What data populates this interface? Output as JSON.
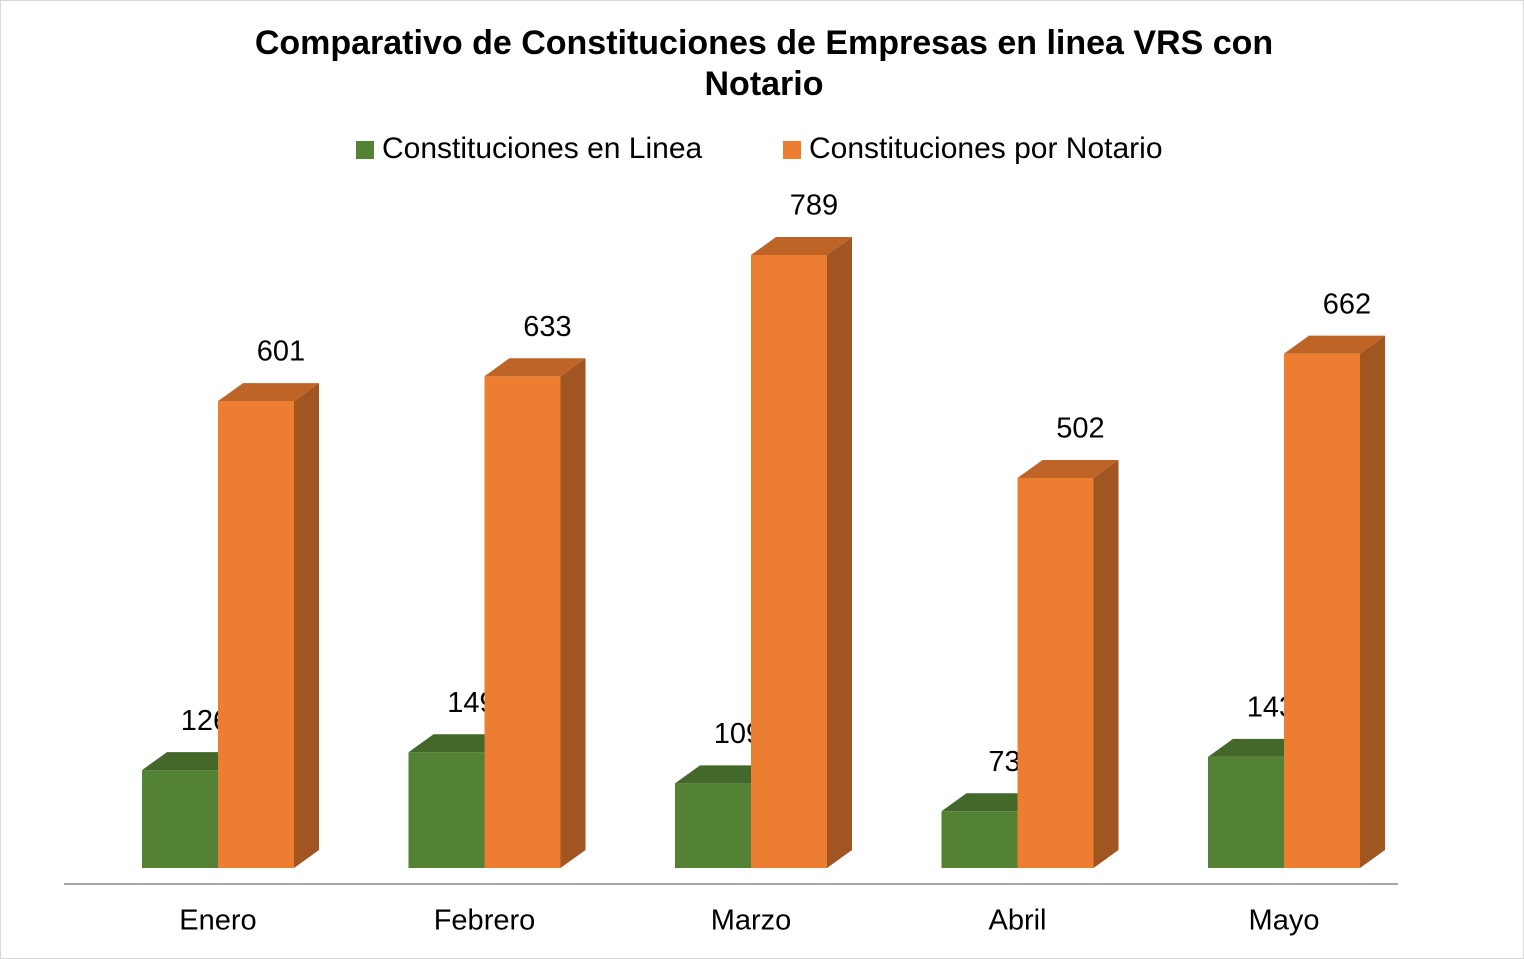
{
  "chart_data": {
    "type": "bar3d",
    "title": [
      "Comparativo de Constituciones de Empresas en linea VRS con",
      "Notario"
    ],
    "categories": [
      "Enero",
      "Febrero",
      "Marzo",
      "Abril",
      "Mayo"
    ],
    "series": [
      {
        "name": "Constituciones en Linea",
        "color": "#548235",
        "values": [
          126,
          149,
          109,
          73,
          143
        ]
      },
      {
        "name": "Constituciones por Notario",
        "color": "#ed7d31",
        "values": [
          601,
          633,
          789,
          502,
          662
        ]
      }
    ],
    "legend": "top"
  }
}
